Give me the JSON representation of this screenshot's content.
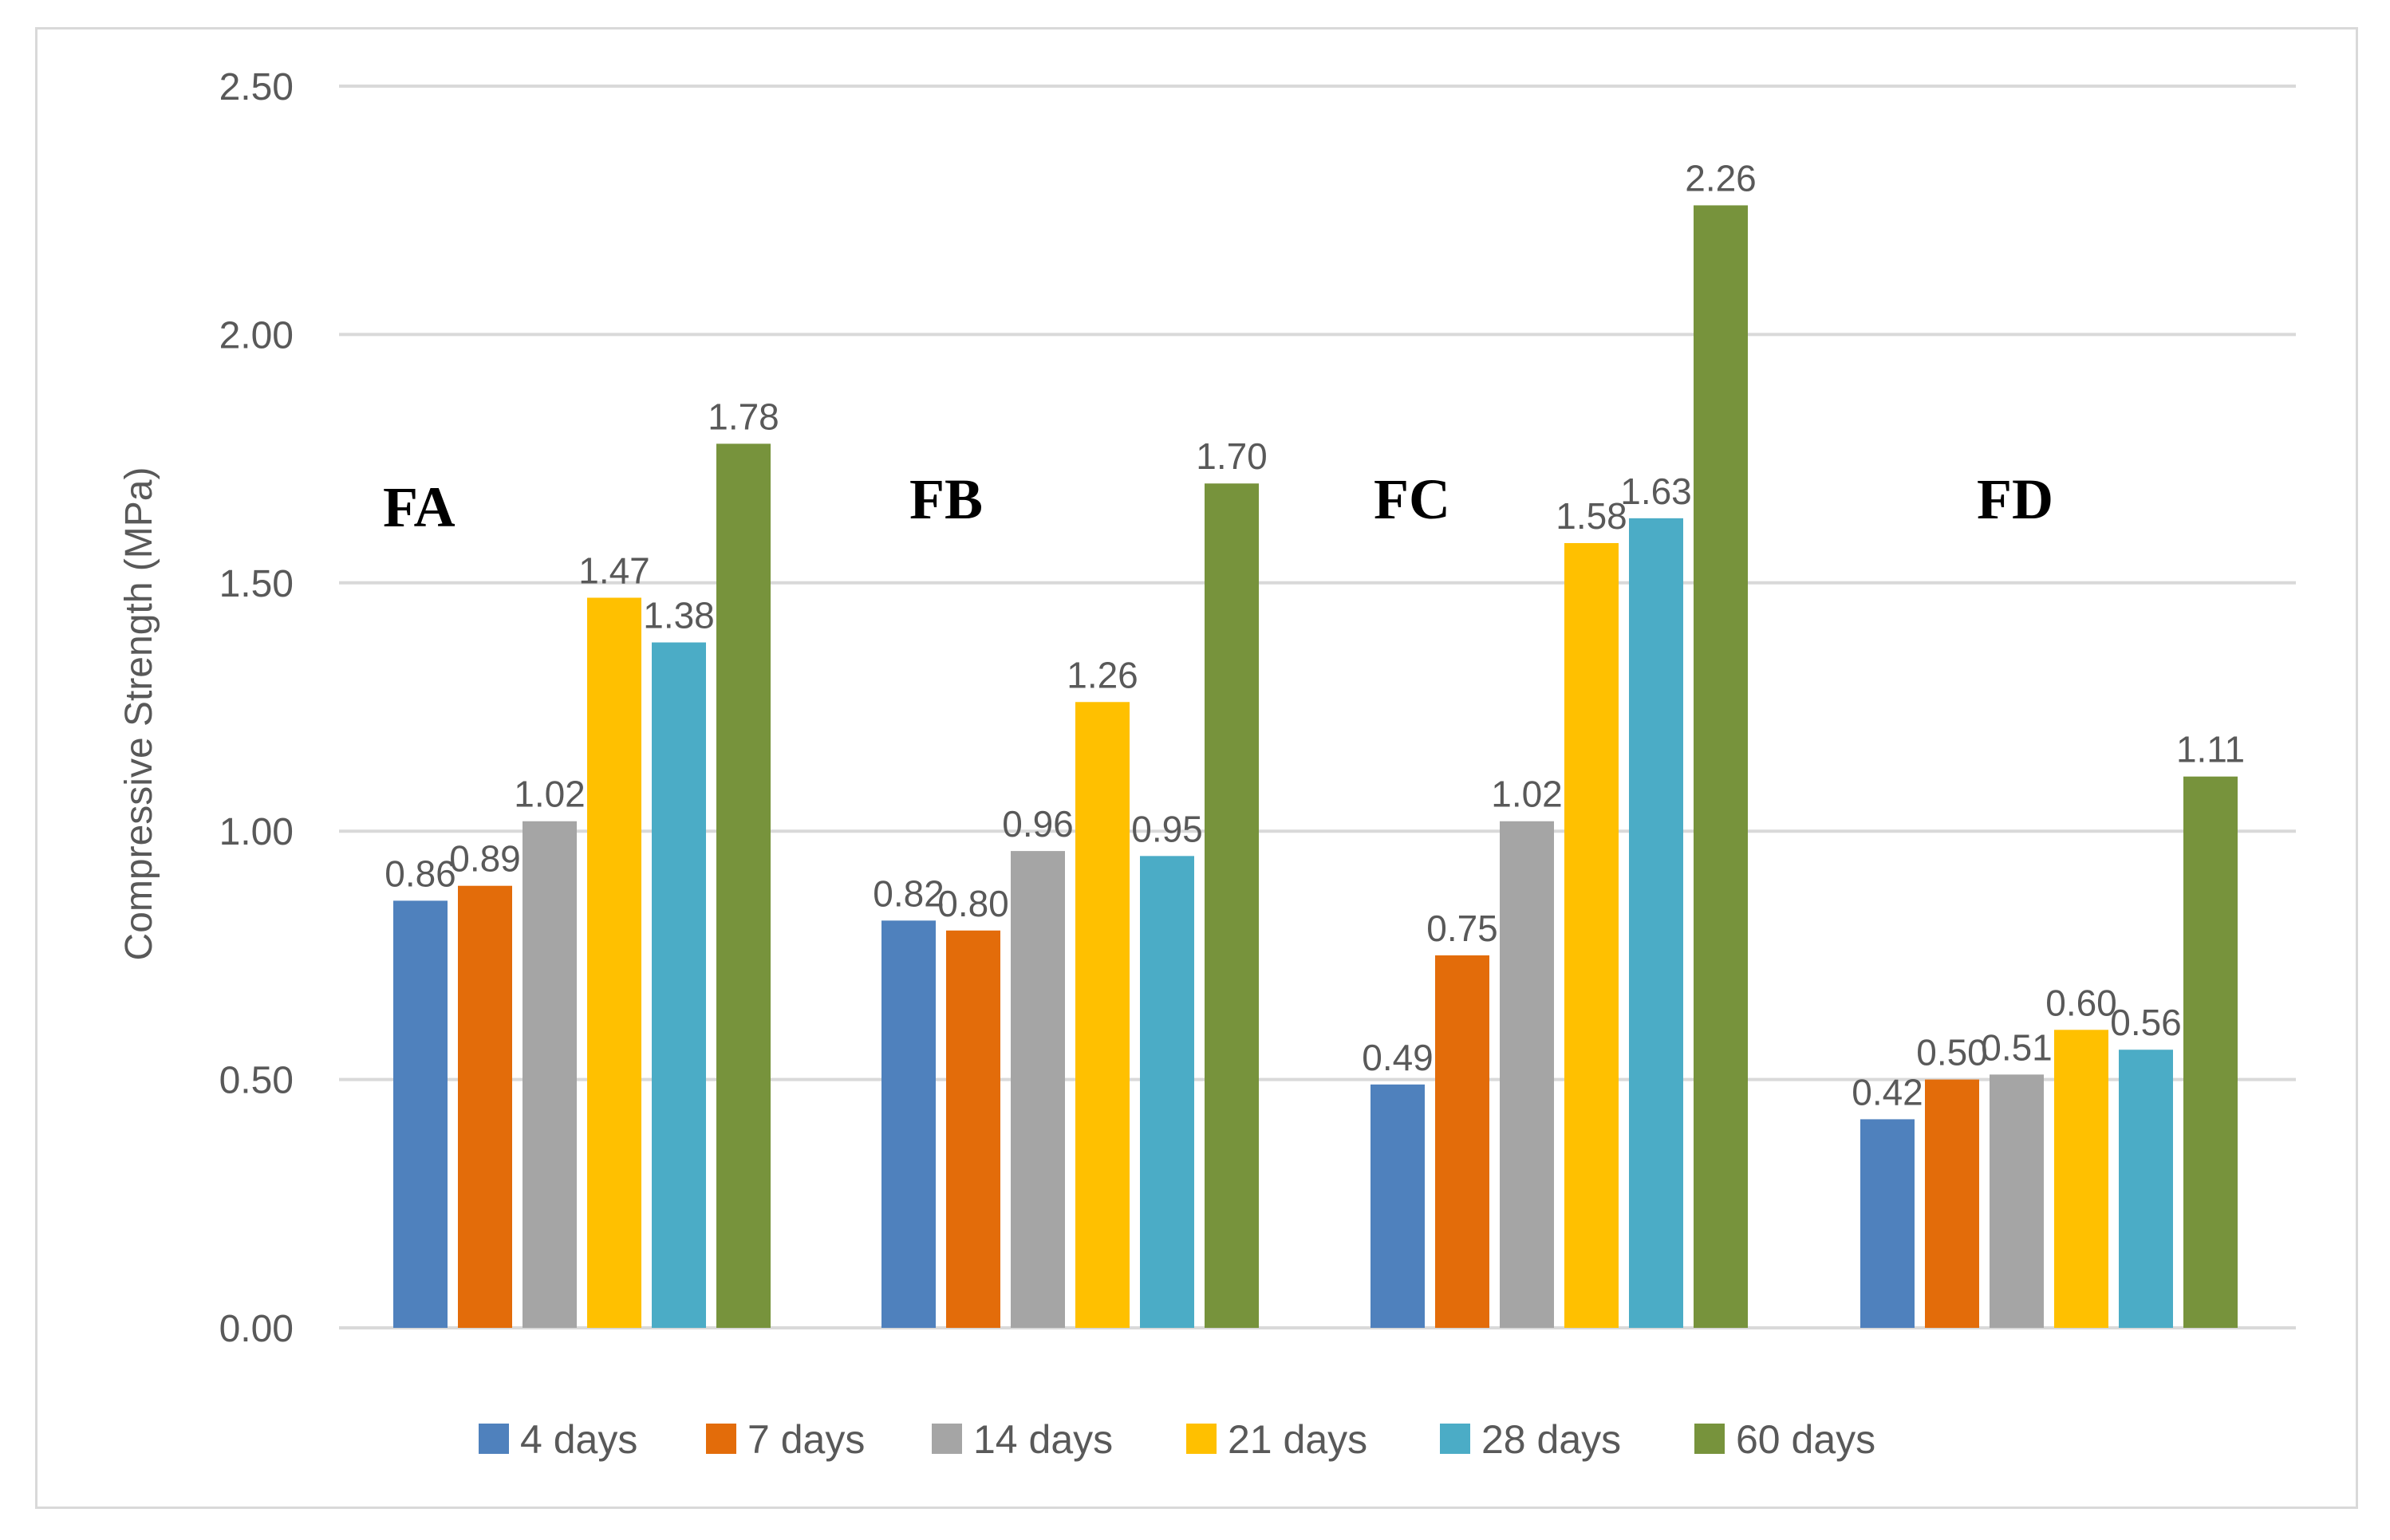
{
  "chart_data": {
    "type": "bar",
    "title": "",
    "xlabel": "",
    "ylabel": "Compressive Strength (MPa)",
    "ylim": [
      0,
      2.5
    ],
    "yticks": [
      "0.00",
      "0.50",
      "1.00",
      "1.50",
      "2.00",
      "2.50"
    ],
    "grid": true,
    "legend_position": "bottom",
    "categories": [
      "FA",
      "FB",
      "FC",
      "FD"
    ],
    "series": [
      {
        "name": "4 days",
        "color": "#4f81bd",
        "values": [
          0.86,
          0.82,
          0.49,
          0.42
        ],
        "labels": [
          "0.86",
          "0.82",
          "0.49",
          "0.42"
        ]
      },
      {
        "name": "7 days",
        "color": "#e36c0a",
        "values": [
          0.89,
          0.8,
          0.75,
          0.5
        ],
        "labels": [
          "0.89",
          "0.80",
          "0.75",
          "0.50"
        ]
      },
      {
        "name": "14 days",
        "color": "#a5a5a5",
        "values": [
          1.02,
          0.96,
          1.02,
          0.51
        ],
        "labels": [
          "1.02",
          "0.96",
          "1.02",
          "0.51"
        ]
      },
      {
        "name": "21 days",
        "color": "#ffc000",
        "values": [
          1.47,
          1.26,
          1.58,
          0.6
        ],
        "labels": [
          "1.47",
          "1.26",
          "1.58",
          "0.60"
        ]
      },
      {
        "name": "28 days",
        "color": "#4bacc6",
        "values": [
          1.38,
          0.95,
          1.63,
          0.56
        ],
        "labels": [
          "1.38",
          "0.95",
          "1.63",
          "0.56"
        ]
      },
      {
        "name": "60 days",
        "color": "#77933c",
        "values": [
          1.78,
          1.7,
          2.26,
          1.11
        ],
        "labels": [
          "1.78",
          "1.70",
          "2.26",
          "1.11"
        ]
      }
    ]
  }
}
